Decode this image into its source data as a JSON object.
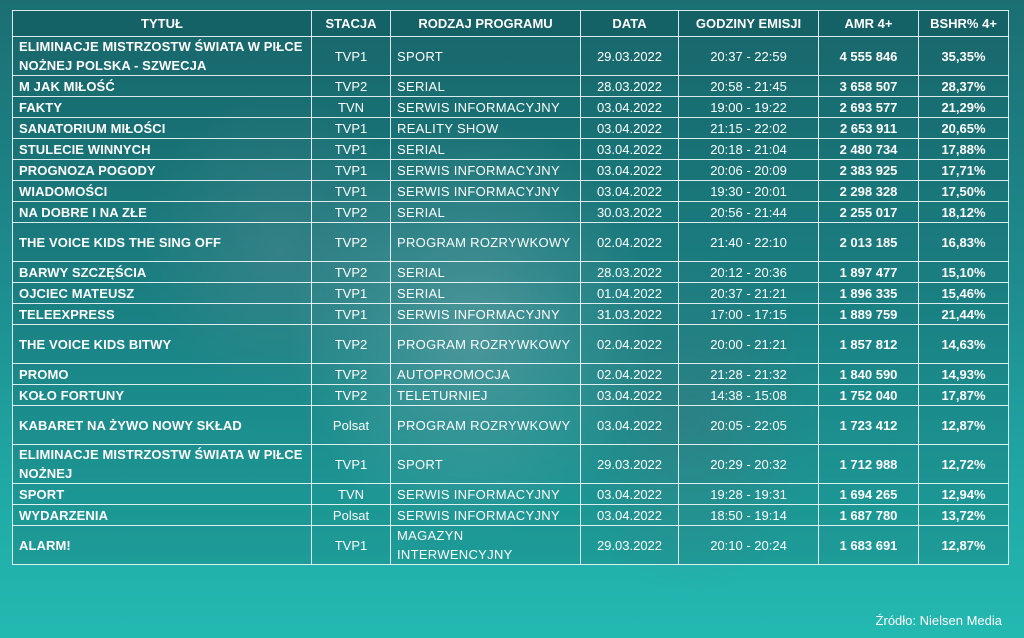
{
  "headers": {
    "title": "TYTUŁ",
    "station": "STACJA",
    "genre": "RODZAJ PROGRAMU",
    "date": "DATA",
    "hours": "GODZINY EMISJI",
    "amr": "AMR 4+",
    "share": "BSHR% 4+"
  },
  "rows": [
    {
      "title": "ELIMINACJE MISTRZOSTW ŚWIATA W PIŁCE NOŻNEJ POLSKA - SZWECJA",
      "station": "TVP1",
      "genre": "SPORT",
      "date": "29.03.2022",
      "hours": "20:37 - 22:59",
      "amr": "4 555 846",
      "share": "35,35%"
    },
    {
      "title": "M JAK MIŁOŚĆ",
      "station": "TVP2",
      "genre": "SERIAL",
      "date": "28.03.2022",
      "hours": "20:58 - 21:45",
      "amr": "3 658 507",
      "share": "28,37%"
    },
    {
      "title": "FAKTY",
      "station": "TVN",
      "genre": "SERWIS INFORMACYJNY",
      "date": "03.04.2022",
      "hours": "19:00 - 19:22",
      "amr": "2 693 577",
      "share": "21,29%"
    },
    {
      "title": "SANATORIUM MIŁOŚCI",
      "station": "TVP1",
      "genre": "REALITY SHOW",
      "date": "03.04.2022",
      "hours": "21:15 - 22:02",
      "amr": "2 653 911",
      "share": "20,65%"
    },
    {
      "title": "STULECIE WINNYCH",
      "station": "TVP1",
      "genre": "SERIAL",
      "date": "03.04.2022",
      "hours": "20:18 - 21:04",
      "amr": "2 480 734",
      "share": "17,88%"
    },
    {
      "title": "PROGNOZA POGODY",
      "station": "TVP1",
      "genre": "SERWIS INFORMACYJNY",
      "date": "03.04.2022",
      "hours": "20:06 - 20:09",
      "amr": "2 383 925",
      "share": "17,71%"
    },
    {
      "title": "WIADOMOŚCI",
      "station": "TVP1",
      "genre": "SERWIS INFORMACYJNY",
      "date": "03.04.2022",
      "hours": "19:30 - 20:01",
      "amr": "2 298 328",
      "share": "17,50%"
    },
    {
      "title": "NA DOBRE I NA ZŁE",
      "station": "TVP2",
      "genre": "SERIAL",
      "date": "30.03.2022",
      "hours": "20:56 - 21:44",
      "amr": "2 255 017",
      "share": "18,12%"
    },
    {
      "title": "THE VOICE KIDS THE SING OFF",
      "station": "TVP2",
      "genre": "PROGRAM ROZRYWKOWY",
      "date": "02.04.2022",
      "hours": "21:40 - 22:10",
      "amr": "2 013 185",
      "share": "16,83%"
    },
    {
      "title": "BARWY SZCZĘŚCIA",
      "station": "TVP2",
      "genre": "SERIAL",
      "date": "28.03.2022",
      "hours": "20:12 - 20:36",
      "amr": "1 897 477",
      "share": "15,10%"
    },
    {
      "title": "OJCIEC MATEUSZ",
      "station": "TVP1",
      "genre": "SERIAL",
      "date": "01.04.2022",
      "hours": "20:37 - 21:21",
      "amr": "1 896 335",
      "share": "15,46%"
    },
    {
      "title": "TELEEXPRESS",
      "station": "TVP1",
      "genre": "SERWIS INFORMACYJNY",
      "date": "31.03.2022",
      "hours": "17:00 - 17:15",
      "amr": "1 889 759",
      "share": "21,44%"
    },
    {
      "title": "THE VOICE KIDS BITWY",
      "station": "TVP2",
      "genre": "PROGRAM ROZRYWKOWY",
      "date": "02.04.2022",
      "hours": "20:00 - 21:21",
      "amr": "1 857 812",
      "share": "14,63%"
    },
    {
      "title": "PROMO",
      "station": "TVP2",
      "genre": "AUTOPROMOCJA",
      "date": "02.04.2022",
      "hours": "21:28 - 21:32",
      "amr": "1 840 590",
      "share": "14,93%"
    },
    {
      "title": "KOŁO FORTUNY",
      "station": "TVP2",
      "genre": "TELETURNIEJ",
      "date": "03.04.2022",
      "hours": "14:38 - 15:08",
      "amr": "1 752 040",
      "share": "17,87%"
    },
    {
      "title": "KABARET NA ŻYWO NOWY SKŁAD",
      "station": "Polsat",
      "genre": "PROGRAM ROZRYWKOWY",
      "date": "03.04.2022",
      "hours": "20:05 - 22:05",
      "amr": "1 723 412",
      "share": "12,87%"
    },
    {
      "title": "ELIMINACJE MISTRZOSTW ŚWIATA W PIŁCE NOŻNEJ",
      "station": "TVP1",
      "genre": "SPORT",
      "date": "29.03.2022",
      "hours": "20:29 - 20:32",
      "amr": "1 712 988",
      "share": "12,72%"
    },
    {
      "title": "SPORT",
      "station": "TVN",
      "genre": "SERWIS INFORMACYJNY",
      "date": "03.04.2022",
      "hours": "19:28 - 19:31",
      "amr": "1 694 265",
      "share": "12,94%"
    },
    {
      "title": "WYDARZENIA",
      "station": "Polsat",
      "genre": "SERWIS INFORMACYJNY",
      "date": "03.04.2022",
      "hours": "18:50 - 19:14",
      "amr": "1 687 780",
      "share": "13,72%"
    },
    {
      "title": "ALARM!",
      "station": "TVP1",
      "genre": "MAGAZYN INTERWENCYJNY",
      "date": "29.03.2022",
      "hours": "20:10 - 20:24",
      "amr": "1 683 691",
      "share": "12,87%"
    }
  ],
  "source": "Źródło: Nielsen Media"
}
